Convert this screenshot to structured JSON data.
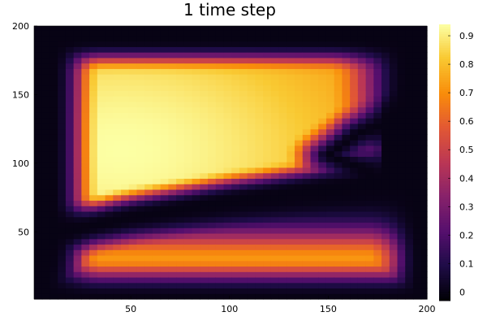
{
  "chart_data": {
    "type": "heatmap",
    "title": "1 time step",
    "xlabel": "",
    "ylabel": "",
    "xlim": [
      1,
      200
    ],
    "ylim": [
      1,
      200
    ],
    "x_ticks": [
      50,
      100,
      150,
      200
    ],
    "y_ticks": [
      50,
      100,
      150,
      200
    ],
    "colorbar": {
      "colormap": "inferno",
      "range": [
        -0.03,
        0.94
      ],
      "ticks": [
        0,
        0.1,
        0.2,
        0.3,
        0.4,
        0.5,
        0.6,
        0.7,
        0.8,
        0.9
      ],
      "tick_labels": [
        "0",
        "0.1",
        "0.2",
        "0.3",
        "0.4",
        "0.5",
        "0.6",
        "0.7",
        "0.8",
        "0.9"
      ]
    },
    "features": {
      "upper_region": {
        "x": [
          30,
          150
        ],
        "y": [
          95,
          165
        ],
        "peak": 0.94,
        "peak_x": 45,
        "peak_y": 110
      },
      "lower_band": {
        "x": [
          30,
          185
        ],
        "y": [
          15,
          45
        ],
        "peak": 0.72
      },
      "zero_curve": [
        [
          5,
          30
        ],
        [
          10,
          47
        ],
        [
          50,
          60
        ],
        [
          100,
          72
        ],
        [
          150,
          82
        ],
        [
          175,
          86
        ],
        [
          168,
          96
        ],
        [
          150,
          106
        ],
        [
          165,
          122
        ],
        [
          190,
          135
        ],
        [
          200,
          133
        ]
      ]
    }
  }
}
